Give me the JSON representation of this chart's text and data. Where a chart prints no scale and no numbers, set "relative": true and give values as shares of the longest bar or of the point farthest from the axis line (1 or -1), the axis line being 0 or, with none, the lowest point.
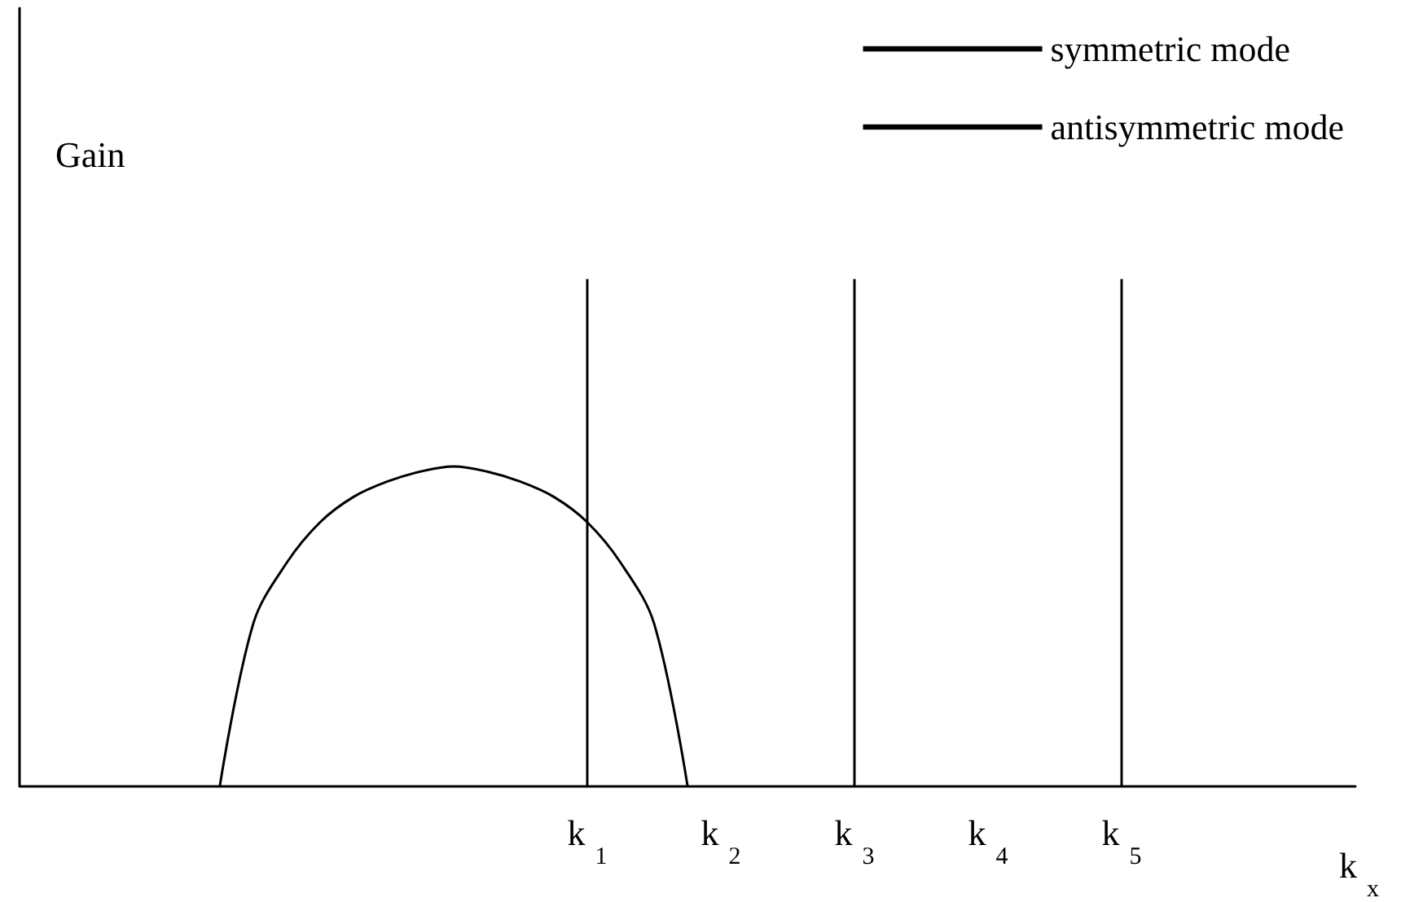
{
  "chart_data": {
    "type": "line",
    "ylabel": "Gain",
    "xlabel": "k$_{x}$",
    "relative": true,
    "categories": [
      null,
      null,
      null,
      null,
      null,
      null,
      null,
      null,
      null,
      null,
      null,
      null,
      null,
      null,
      null,
      null,
      null,
      "k$_{1}$",
      null,
      null,
      null,
      "k$_{2}$",
      null,
      null,
      null,
      "k$_{3}$",
      null,
      null,
      null,
      "k$_{4}$",
      null,
      null,
      null,
      "k$_{5}$",
      null,
      null,
      null,
      null,
      null,
      null,
      null
    ],
    "series": [
      {
        "name": "symmetric mode",
        "color": "#000000",
        "values": [
          null,
          null,
          null,
          null,
          null,
          null,
          0,
          0.32,
          0.44,
          0.52,
          0.57,
          0.6,
          0.62,
          0.63,
          0.62,
          0.6,
          0.57,
          0.52,
          0.44,
          0.32,
          0,
          null,
          null,
          null,
          null,
          null,
          null,
          null,
          null,
          null,
          null,
          null,
          null,
          null,
          null,
          null,
          null,
          null,
          null,
          null,
          null
        ]
      },
      {
        "name": "antisymmetric mode",
        "type": "bar",
        "color": "#000000",
        "values": [
          null,
          null,
          null,
          null,
          null,
          null,
          null,
          null,
          null,
          null,
          null,
          null,
          null,
          null,
          null,
          null,
          null,
          1,
          null,
          null,
          null,
          null,
          null,
          null,
          null,
          1,
          null,
          null,
          null,
          null,
          null,
          null,
          null,
          1,
          null,
          null,
          null,
          null,
          null,
          null,
          null
        ]
      }
    ],
    "legend": "top right",
    "grid": false,
    "marker": "none",
    "line_style": "solid"
  }
}
